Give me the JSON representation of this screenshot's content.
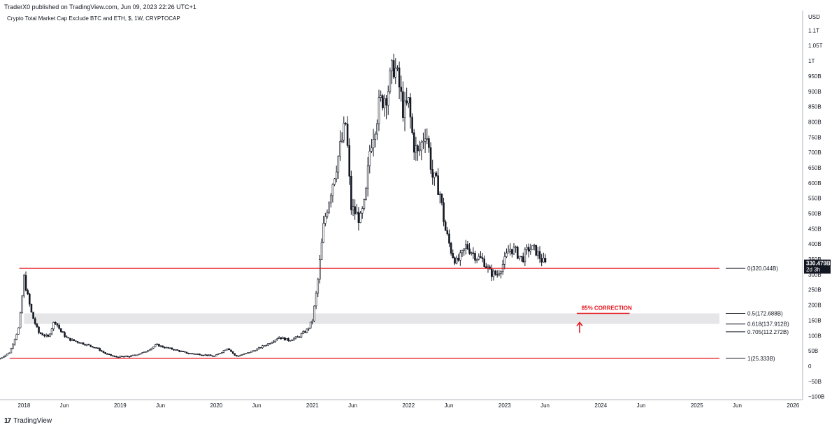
{
  "header": {
    "publisher": "TraderX0 published on TradingView.com, Jun 09, 2023 22:26 UTC+1"
  },
  "symbol": {
    "title": "Crypto Total Market Cap Exclude BTC and ETH, $, 1W, CRYPTOCAP"
  },
  "footer": {
    "brand": "TradingView",
    "logo_icon": "tradingview-logo-icon"
  },
  "colors": {
    "candle": "#131722",
    "level_line": "#e5121a",
    "zone": "#e6e6e8",
    "annotation": "#e5121a",
    "price_tag_bg": "#131722"
  },
  "chart_data": {
    "type": "candlestick",
    "currency_label": "USD",
    "y_scale": "linear",
    "ylim": [
      -110,
      1165
    ],
    "y_ticks": [
      {
        "v": -100,
        "label": "−100B"
      },
      {
        "v": -50,
        "label": "−50B"
      },
      {
        "v": 0,
        "label": "0"
      },
      {
        "v": 50,
        "label": "50B"
      },
      {
        "v": 100,
        "label": "100B"
      },
      {
        "v": 150,
        "label": "150B"
      },
      {
        "v": 200,
        "label": "200B"
      },
      {
        "v": 250,
        "label": "250B"
      },
      {
        "v": 300,
        "label": "300B"
      },
      {
        "v": 350,
        "label": "350B"
      },
      {
        "v": 400,
        "label": "400B"
      },
      {
        "v": 450,
        "label": "450B"
      },
      {
        "v": 500,
        "label": "500B"
      },
      {
        "v": 550,
        "label": "550B"
      },
      {
        "v": 600,
        "label": "600B"
      },
      {
        "v": 650,
        "label": "650B"
      },
      {
        "v": 700,
        "label": "700B"
      },
      {
        "v": 750,
        "label": "750B"
      },
      {
        "v": 800,
        "label": "800B"
      },
      {
        "v": 850,
        "label": "850B"
      },
      {
        "v": 900,
        "label": "900B"
      },
      {
        "v": 950,
        "label": "950B"
      },
      {
        "v": 1000,
        "label": "1T"
      },
      {
        "v": 1050,
        "label": "1.05T"
      },
      {
        "v": 1100,
        "label": "1.1T"
      }
    ],
    "x_ticks": [
      {
        "t": 2018.0,
        "label": "2018"
      },
      {
        "t": 2018.42,
        "label": "Jun"
      },
      {
        "t": 2019.0,
        "label": "2019"
      },
      {
        "t": 2019.42,
        "label": "Jun"
      },
      {
        "t": 2020.0,
        "label": "2020"
      },
      {
        "t": 2020.42,
        "label": "Jun"
      },
      {
        "t": 2021.0,
        "label": "2021"
      },
      {
        "t": 2021.42,
        "label": "Jun"
      },
      {
        "t": 2022.0,
        "label": "2022"
      },
      {
        "t": 2022.42,
        "label": "Jun"
      },
      {
        "t": 2023.0,
        "label": "2023"
      },
      {
        "t": 2023.42,
        "label": "Jun"
      },
      {
        "t": 2024.0,
        "label": "2024"
      },
      {
        "t": 2024.42,
        "label": "Jun"
      },
      {
        "t": 2025.0,
        "label": "2025"
      },
      {
        "t": 2025.42,
        "label": "Jun"
      },
      {
        "t": 2026.0,
        "label": "2026"
      }
    ],
    "xlim": [
      2017.75,
      2026.1
    ],
    "price_path": [
      [
        2017.75,
        25
      ],
      [
        2017.85,
        45
      ],
      [
        2017.95,
        130
      ],
      [
        2018.0,
        290
      ],
      [
        2018.03,
        240
      ],
      [
        2018.08,
        170
      ],
      [
        2018.15,
        110
      ],
      [
        2018.25,
        95
      ],
      [
        2018.32,
        150
      ],
      [
        2018.38,
        115
      ],
      [
        2018.45,
        90
      ],
      [
        2018.55,
        80
      ],
      [
        2018.65,
        70
      ],
      [
        2018.75,
        60
      ],
      [
        2018.85,
        40
      ],
      [
        2018.95,
        30
      ],
      [
        2019.1,
        32
      ],
      [
        2019.25,
        45
      ],
      [
        2019.38,
        70
      ],
      [
        2019.45,
        62
      ],
      [
        2019.55,
        55
      ],
      [
        2019.7,
        42
      ],
      [
        2019.85,
        38
      ],
      [
        2019.98,
        32
      ],
      [
        2020.05,
        45
      ],
      [
        2020.12,
        60
      ],
      [
        2020.2,
        32
      ],
      [
        2020.3,
        40
      ],
      [
        2020.42,
        55
      ],
      [
        2020.55,
        75
      ],
      [
        2020.65,
        95
      ],
      [
        2020.75,
        85
      ],
      [
        2020.85,
        95
      ],
      [
        2020.95,
        120
      ],
      [
        2021.0,
        150
      ],
      [
        2021.05,
        260
      ],
      [
        2021.12,
        470
      ],
      [
        2021.25,
        660
      ],
      [
        2021.35,
        800
      ],
      [
        2021.4,
        520
      ],
      [
        2021.5,
        480
      ],
      [
        2021.55,
        540
      ],
      [
        2021.6,
        720
      ],
      [
        2021.7,
        860
      ],
      [
        2021.78,
        900
      ],
      [
        2021.85,
        990
      ],
      [
        2021.9,
        920
      ],
      [
        2021.95,
        830
      ],
      [
        2022.0,
        860
      ],
      [
        2022.05,
        730
      ],
      [
        2022.1,
        690
      ],
      [
        2022.18,
        780
      ],
      [
        2022.25,
        620
      ],
      [
        2022.32,
        580
      ],
      [
        2022.38,
        450
      ],
      [
        2022.45,
        370
      ],
      [
        2022.5,
        340
      ],
      [
        2022.55,
        360
      ],
      [
        2022.6,
        395
      ],
      [
        2022.7,
        360
      ],
      [
        2022.78,
        345
      ],
      [
        2022.85,
        305
      ],
      [
        2022.92,
        300
      ],
      [
        2023.0,
        345
      ],
      [
        2023.05,
        385
      ],
      [
        2023.1,
        380
      ],
      [
        2023.18,
        350
      ],
      [
        2023.25,
        385
      ],
      [
        2023.32,
        380
      ],
      [
        2023.38,
        350
      ],
      [
        2023.43,
        331
      ]
    ],
    "last_value": 330.479,
    "last_price_label": "330.479B",
    "countdown_label": "2d 3h",
    "levels": [
      {
        "ratio": "0",
        "value": 320.044,
        "label": "0(320.044B)",
        "line": "red",
        "x_start": 2017.95
      },
      {
        "ratio": "0.5",
        "value": 172.688,
        "label": "0.5(172.688B)",
        "line": "none"
      },
      {
        "ratio": "0.618",
        "value": 137.912,
        "label": "0.618(137.912B)",
        "line": "none"
      },
      {
        "ratio": "0.705",
        "value": 112.272,
        "label": "0.705(112.272B)",
        "line": "none"
      },
      {
        "ratio": "1",
        "value": 25.333,
        "label": "1(25.333B)",
        "line": "red",
        "x_start": 2017.85
      }
    ],
    "zone": {
      "low": 137.912,
      "high": 172.688,
      "x_start": 2018.0,
      "x_end": 2026.1
    },
    "annotation": {
      "text": "85% CORRECTION",
      "t_start": 2023.75,
      "t_end": 2024.3,
      "value": 172.688,
      "arrow_t": 2023.78
    }
  }
}
